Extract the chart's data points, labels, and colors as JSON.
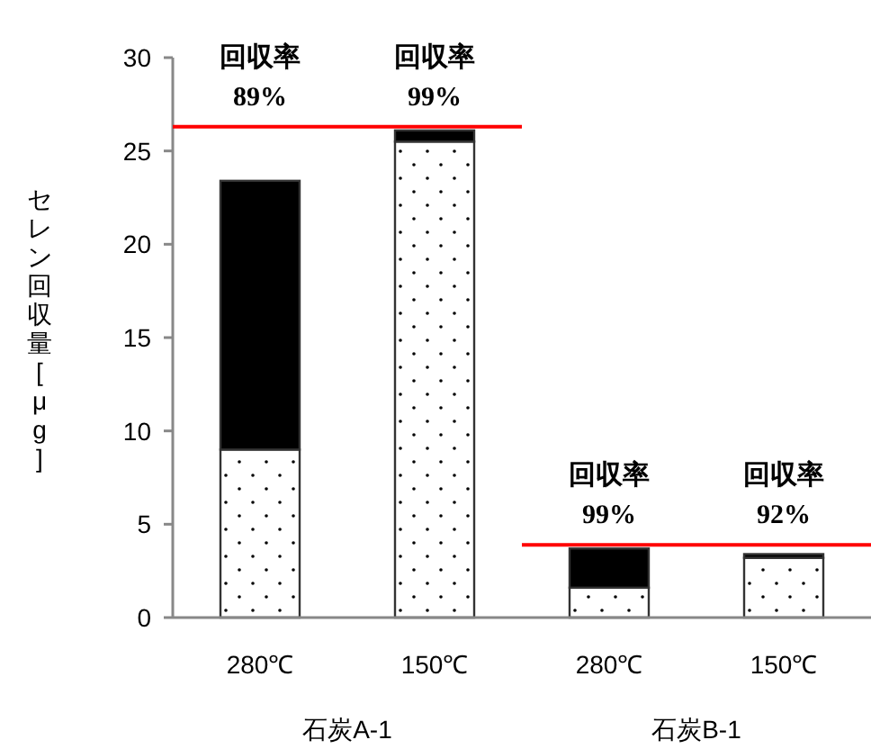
{
  "chart_data": {
    "type": "bar",
    "stacked": true,
    "ylabel": "セレン回収量[μg]",
    "categories": [
      "280℃",
      "150℃",
      "280℃",
      "150℃"
    ],
    "series": [
      {
        "color": "#ffffff",
        "values": [
          9.0,
          25.5,
          1.6,
          3.2
        ]
      },
      {
        "color": "#000000",
        "values": [
          14.4,
          0.6,
          2.1,
          0.2
        ]
      }
    ],
    "ylim": [
      0,
      30
    ],
    "yticks": [
      0,
      5,
      10,
      15,
      20,
      25,
      30
    ],
    "grid": false,
    "ref_lines": [
      {
        "axis": "y",
        "value": 26.3,
        "color": "#ff0000"
      },
      {
        "axis": "y",
        "value": 3.9,
        "color": "#ff0000"
      }
    ],
    "annotations": [
      "回収率\n89%",
      "回収率\n99%",
      "回収率\n99%",
      "回収率\n92%",
      "石炭A-1",
      "石炭B-1"
    ]
  }
}
